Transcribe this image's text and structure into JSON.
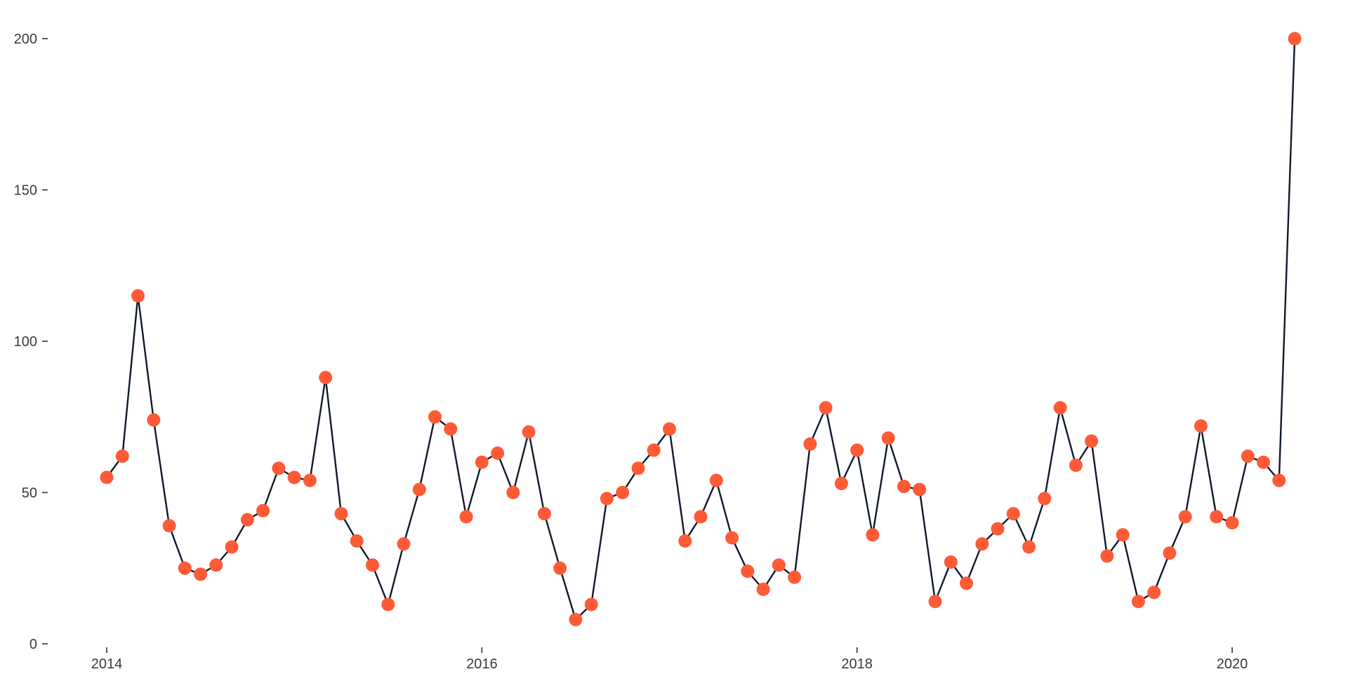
{
  "chart_data": {
    "type": "line",
    "title": "",
    "xlabel": "",
    "ylabel": "",
    "x_ticks": [
      "2014",
      "2016",
      "2018",
      "2020"
    ],
    "y_ticks": [
      "0",
      "50",
      "100",
      "150",
      "200"
    ],
    "xlim": [
      "2013-11",
      "2020-12"
    ],
    "ylim": [
      0,
      200
    ],
    "grid": false,
    "legend": "none",
    "line_color": "#0e1a2b",
    "marker_color": "#ff5a36",
    "series": [
      {
        "x": [
          "2014-01",
          "2014-02",
          "2014-03",
          "2014-04",
          "2014-05",
          "2014-06",
          "2014-07",
          "2014-08",
          "2014-09",
          "2014-10",
          "2014-11",
          "2014-12",
          "2015-01",
          "2015-02",
          "2015-03",
          "2015-04",
          "2015-05",
          "2015-06",
          "2015-07",
          "2015-08",
          "2015-09",
          "2015-10",
          "2015-11",
          "2015-12",
          "2016-01",
          "2016-02",
          "2016-03",
          "2016-04",
          "2016-05",
          "2016-06",
          "2016-07",
          "2016-08",
          "2016-09",
          "2016-10",
          "2016-11",
          "2016-12",
          "2017-01",
          "2017-02",
          "2017-03",
          "2017-04",
          "2017-05",
          "2017-06",
          "2017-07",
          "2017-08",
          "2017-09",
          "2017-10",
          "2017-11",
          "2017-12",
          "2018-01",
          "2018-02",
          "2018-03",
          "2018-04",
          "2018-05",
          "2018-06",
          "2018-07",
          "2018-08",
          "2018-09",
          "2018-10",
          "2018-11",
          "2018-12",
          "2019-01",
          "2019-02",
          "2019-03",
          "2019-04",
          "2019-05",
          "2019-06",
          "2019-07",
          "2019-08",
          "2019-09",
          "2019-10",
          "2019-11",
          "2019-12",
          "2020-01",
          "2020-02",
          "2020-03",
          "2020-04",
          "2020-05"
        ],
        "values": [
          55,
          62,
          115,
          74,
          39,
          25,
          23,
          26,
          32,
          41,
          44,
          58,
          55,
          54,
          88,
          43,
          34,
          26,
          13,
          33,
          51,
          75,
          71,
          42,
          60,
          63,
          50,
          70,
          43,
          25,
          8,
          13,
          48,
          50,
          58,
          64,
          71,
          34,
          42,
          54,
          35,
          24,
          18,
          26,
          22,
          66,
          78,
          53,
          64,
          36,
          68,
          52,
          51,
          14,
          27,
          20,
          33,
          38,
          43,
          32,
          48,
          78,
          59,
          67,
          29,
          36,
          14,
          17,
          30,
          42,
          72,
          42,
          40,
          62,
          60,
          54,
          200
        ]
      }
    ]
  }
}
